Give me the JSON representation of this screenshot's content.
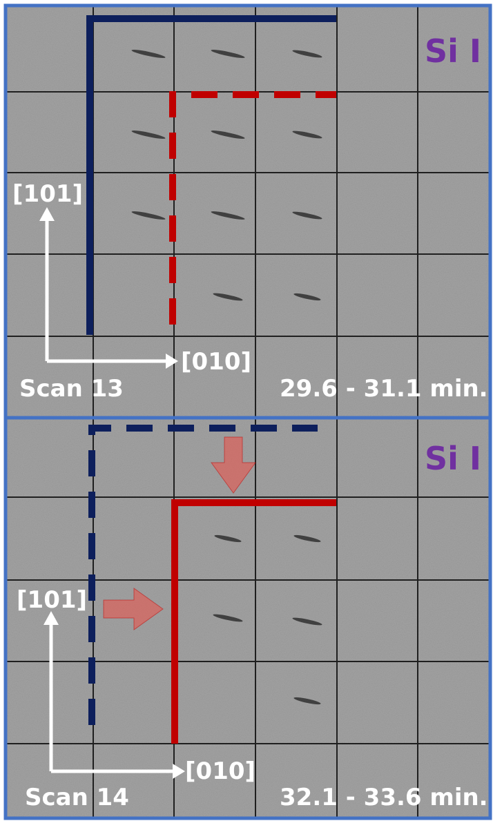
{
  "panels": [
    {
      "label": "Si I",
      "axis_vertical": "[101]",
      "axis_horizontal": "[010]",
      "scan": "Scan 13",
      "time": "29.6 - 31.1 min."
    },
    {
      "label": "Si I",
      "axis_vertical": "[101]",
      "axis_horizontal": "[010]",
      "scan": "Scan 14",
      "time": "32.1 - 33.6 min."
    }
  ]
}
